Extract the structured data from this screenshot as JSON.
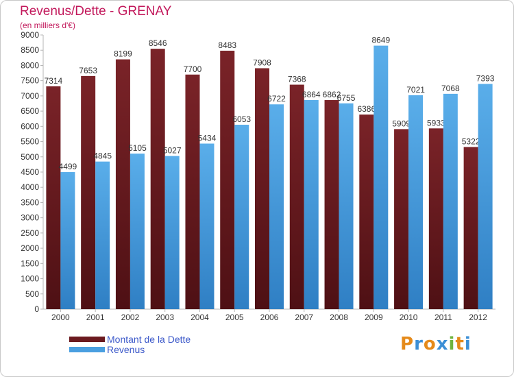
{
  "title": "Revenus/Dette - GRENAY",
  "subtitle": "(en milliers d'€)",
  "logo_text": "Proxiti",
  "colors": {
    "title": "#c2185b",
    "dette": "#6b1a1f",
    "revenus": "#4a9fe0",
    "legend_text": "#3a57c9",
    "logo": [
      "#e58a1a",
      "#3c8fd6",
      "#e58a1a",
      "#3c8fd6",
      "#6fb43f",
      "#e58a1a",
      "#3c8fd6"
    ]
  },
  "legend": [
    {
      "label": "Montant de la Dette",
      "color": "#6b1a1f",
      "icon": "dark-red-swatch"
    },
    {
      "label": "Revenus",
      "color": "#4a9fe0",
      "icon": "blue-swatch"
    }
  ],
  "chart_data": {
    "type": "bar",
    "categories": [
      "2000",
      "2001",
      "2002",
      "2003",
      "2004",
      "2005",
      "2006",
      "2007",
      "2008",
      "2009",
      "2010",
      "2011",
      "2012"
    ],
    "series": [
      {
        "name": "Montant de la Dette",
        "values": [
          7314,
          7653,
          8199,
          8546,
          7700,
          8483,
          7908,
          7368,
          6862,
          6386,
          5909,
          5933,
          5322
        ],
        "labels": [
          "7314",
          "7653",
          "8199",
          "8546",
          "7700",
          "8483",
          "7908",
          "7368",
          "6862",
          "6386",
          "5909",
          "5933",
          "5322"
        ]
      },
      {
        "name": "Revenus",
        "values": [
          4499,
          4845,
          5105,
          5027,
          5434,
          6053,
          6722,
          6864,
          6755,
          8649,
          7021,
          7068,
          7393
        ],
        "labels": [
          "4499",
          "4845",
          "5105",
          "5027",
          "5434",
          "6053",
          "6722",
          "6864",
          "6755",
          "8649",
          "7021",
          "7068",
          "7393"
        ]
      }
    ],
    "ylim": [
      0,
      9000
    ],
    "yticks": [
      "0",
      "500",
      "1000",
      "1500",
      "2000",
      "2500",
      "3000",
      "3500",
      "4000",
      "4500",
      "5000",
      "5500",
      "6000",
      "6500",
      "7000",
      "7500",
      "8000",
      "8500",
      "9000"
    ],
    "grid": false,
    "legend_position": "bottom-left"
  }
}
